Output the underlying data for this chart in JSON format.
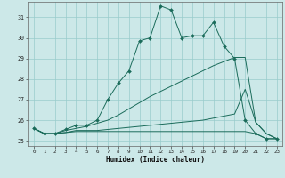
{
  "title": "",
  "xlabel": "Humidex (Indice chaleur)",
  "bg_color": "#cce8e8",
  "line_color": "#1a6b5a",
  "grid_color": "#99cccc",
  "x_ticks": [
    0,
    1,
    2,
    3,
    4,
    5,
    6,
    7,
    8,
    9,
    10,
    11,
    12,
    13,
    14,
    15,
    16,
    17,
    18,
    19,
    20,
    21,
    22,
    23
  ],
  "y_ticks": [
    25,
    26,
    27,
    28,
    29,
    30,
    31
  ],
  "xlim": [
    -0.5,
    23.5
  ],
  "ylim": [
    24.75,
    31.75
  ],
  "line1_y": [
    25.6,
    25.35,
    25.35,
    25.55,
    25.75,
    25.75,
    26.0,
    27.0,
    27.8,
    28.4,
    29.85,
    30.0,
    31.55,
    31.35,
    30.0,
    30.1,
    30.1,
    30.75,
    29.6,
    29.0,
    26.0,
    25.35,
    25.1,
    25.1
  ],
  "line2_y": [
    25.6,
    25.35,
    25.35,
    25.5,
    25.6,
    25.7,
    25.85,
    26.0,
    26.25,
    26.55,
    26.85,
    27.15,
    27.4,
    27.65,
    27.9,
    28.15,
    28.4,
    28.65,
    28.85,
    29.05,
    29.05,
    25.9,
    25.35,
    25.1
  ],
  "line3_y": [
    25.6,
    25.35,
    25.35,
    25.4,
    25.5,
    25.5,
    25.5,
    25.55,
    25.6,
    25.65,
    25.7,
    25.75,
    25.8,
    25.85,
    25.9,
    25.95,
    26.0,
    26.1,
    26.2,
    26.3,
    27.5,
    25.9,
    25.35,
    25.1
  ],
  "line4_y": [
    25.6,
    25.35,
    25.35,
    25.4,
    25.45,
    25.45,
    25.45,
    25.45,
    25.45,
    25.45,
    25.45,
    25.45,
    25.45,
    25.45,
    25.45,
    25.45,
    25.45,
    25.45,
    25.45,
    25.45,
    25.45,
    25.35,
    25.1,
    25.1
  ]
}
